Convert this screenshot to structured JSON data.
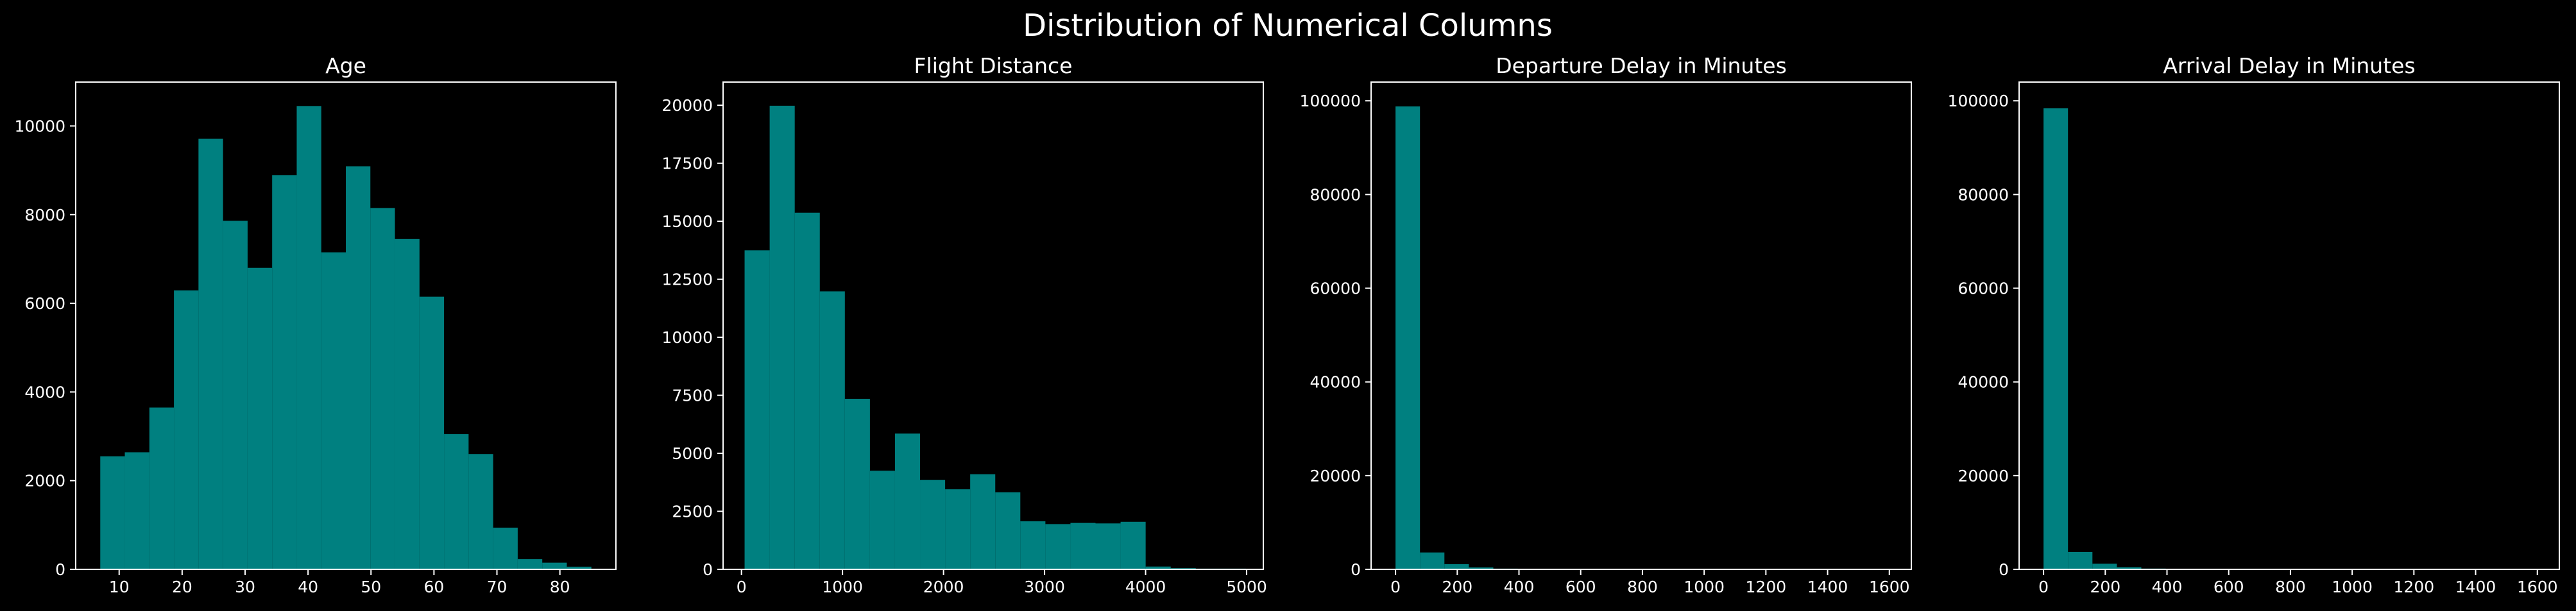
{
  "figure": {
    "suptitle": "Distribution of Numerical Columns",
    "background": "#000000",
    "bar_color": "#008080",
    "axis_color": "#FFFFFF",
    "text_color": "#FFFFFF"
  },
  "chart_data": [
    {
      "type": "bar",
      "title": "Age",
      "xlabel": "",
      "ylabel": "",
      "xlim": [
        3.1,
        88.9
      ],
      "ylim": [
        0,
        10990
      ],
      "bin_edges": [
        7,
        10.9,
        14.8,
        18.7,
        22.6,
        26.5,
        30.4,
        34.3,
        38.2,
        42.1,
        46,
        49.9,
        53.8,
        57.7,
        61.6,
        65.5,
        69.4,
        73.3,
        77.2,
        81.1,
        85
      ],
      "values": [
        2550,
        2640,
        3650,
        6290,
        9710,
        7860,
        6800,
        8890,
        10450,
        7150,
        9090,
        8150,
        7450,
        6150,
        3050,
        2600,
        940,
        230,
        150,
        60
      ],
      "x_ticks": [
        10,
        20,
        30,
        40,
        50,
        60,
        70,
        80
      ],
      "x_tick_labels": [
        "10",
        "20",
        "30",
        "40",
        "50",
        "60",
        "70",
        "80"
      ],
      "y_ticks": [
        0,
        2000,
        4000,
        6000,
        8000,
        10000
      ],
      "y_tick_labels": [
        "0",
        "2000",
        "4000",
        "6000",
        "8000",
        "10000"
      ]
    },
    {
      "type": "bar",
      "title": "Flight Distance",
      "xlabel": "",
      "ylabel": "",
      "xlim": [
        -182,
        5165
      ],
      "ylim": [
        0,
        21000
      ],
      "bin_edges": [
        31,
        279.1,
        527.2,
        775.3,
        1023.4,
        1271.5,
        1519.6,
        1767.7,
        2015.8,
        2263.9,
        2512,
        2760.1,
        3008.2,
        3256.3,
        3504.4,
        3752.5,
        4000.6,
        4248.7,
        4496.8,
        4744.9,
        4993
      ],
      "values": [
        13750,
        19980,
        15370,
        11980,
        7350,
        4250,
        5850,
        3850,
        3450,
        4100,
        3320,
        2070,
        1950,
        2000,
        1980,
        2050,
        120,
        50,
        30,
        30
      ],
      "x_ticks": [
        0,
        1000,
        2000,
        3000,
        4000,
        5000
      ],
      "x_tick_labels": [
        "0",
        "1000",
        "2000",
        "3000",
        "4000",
        "5000"
      ],
      "y_ticks": [
        0,
        2500,
        5000,
        7500,
        10000,
        12500,
        15000,
        17500,
        20000
      ],
      "y_tick_labels": [
        "0",
        "2500",
        "5000",
        "7500",
        "10000",
        "12500",
        "15000",
        "17500",
        "20000"
      ]
    },
    {
      "type": "bar",
      "title": "Departure Delay in Minutes",
      "xlabel": "",
      "ylabel": "",
      "xlim": [
        -79.2,
        1671.2
      ],
      "ylim": [
        0,
        104000
      ],
      "bin_edges": [
        0,
        79.2,
        158.4,
        237.6,
        316.8,
        396,
        475.2,
        554.4,
        633.6,
        712.8,
        792,
        871.2,
        950.4,
        1029.6,
        1108.8,
        1188,
        1267.2,
        1346.4,
        1425.6,
        1504.8,
        1584
      ],
      "values": [
        98800,
        3600,
        1100,
        400,
        150,
        80,
        50,
        30,
        20,
        10,
        8,
        5,
        4,
        3,
        2,
        2,
        1,
        1,
        1,
        1
      ],
      "x_ticks": [
        0,
        200,
        400,
        600,
        800,
        1000,
        1200,
        1400,
        1600
      ],
      "x_tick_labels": [
        "0",
        "200",
        "400",
        "600",
        "800",
        "1000",
        "1200",
        "1400",
        "1600"
      ],
      "y_ticks": [
        0,
        20000,
        40000,
        60000,
        80000,
        100000
      ],
      "y_tick_labels": [
        "0",
        "20000",
        "40000",
        "60000",
        "80000",
        "100000"
      ]
    },
    {
      "type": "bar",
      "title": "Arrival Delay in Minutes",
      "xlabel": "",
      "ylabel": "",
      "xlim": [
        -79.2,
        1671.2
      ],
      "ylim": [
        0,
        104000
      ],
      "bin_edges": [
        0,
        79.2,
        158.4,
        237.6,
        316.8,
        396,
        475.2,
        554.4,
        633.6,
        712.8,
        792,
        871.2,
        950.4,
        1029.6,
        1108.8,
        1188,
        1267.2,
        1346.4,
        1425.6,
        1504.8,
        1584
      ],
      "values": [
        98400,
        3700,
        1200,
        450,
        160,
        90,
        50,
        30,
        20,
        10,
        8,
        5,
        4,
        3,
        2,
        2,
        1,
        1,
        1,
        1
      ],
      "x_ticks": [
        0,
        200,
        400,
        600,
        800,
        1000,
        1200,
        1400,
        1600
      ],
      "x_tick_labels": [
        "0",
        "200",
        "400",
        "600",
        "800",
        "1000",
        "1200",
        "1400",
        "1600"
      ],
      "y_ticks": [
        0,
        20000,
        40000,
        60000,
        80000,
        100000
      ],
      "y_tick_labels": [
        "0",
        "20000",
        "40000",
        "60000",
        "80000",
        "100000"
      ]
    }
  ]
}
